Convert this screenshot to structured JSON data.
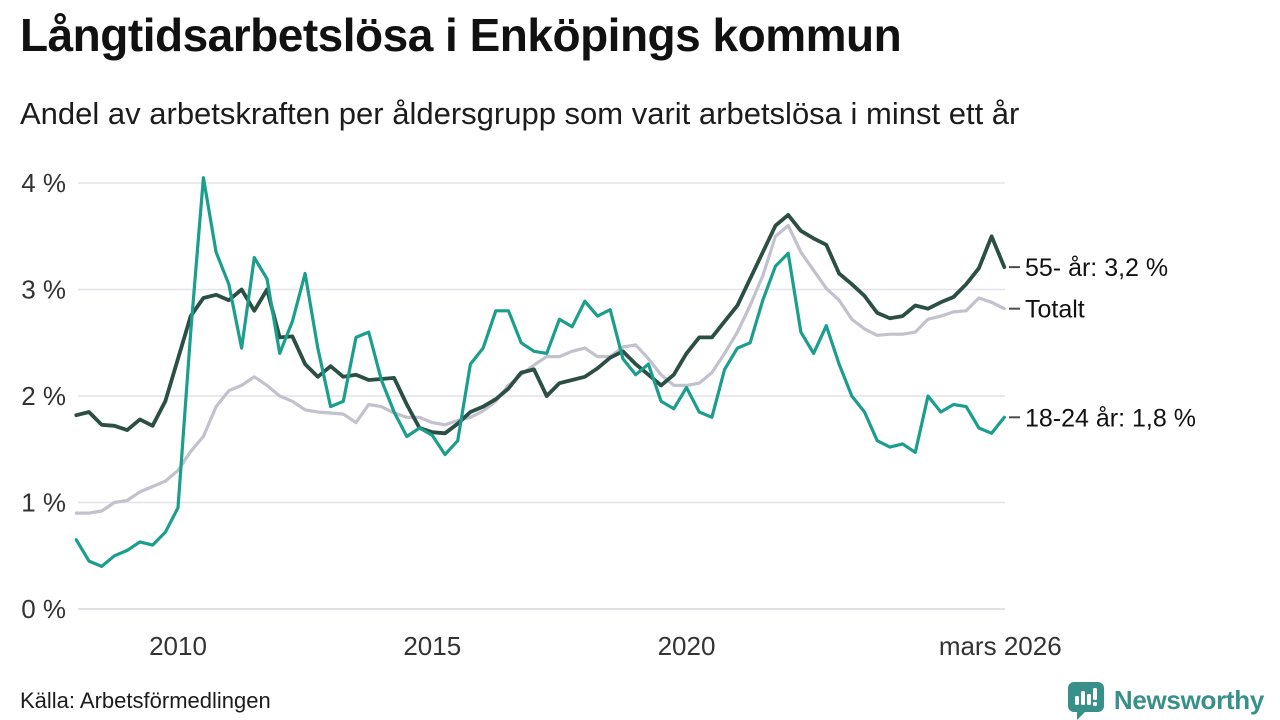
{
  "header": {
    "title": "Långtidsarbetslösa i Enköpings kommun",
    "subtitle": "Andel av arbetskraften per åldersgrupp som varit arbetslösa i minst ett år"
  },
  "footer": {
    "source": "Källa: Arbetsförmedlingen",
    "brand": "Newsworthy",
    "brand_color": "#38908b",
    "logo_icon": "speech-bubble-bar-chart"
  },
  "chart_data": {
    "type": "line",
    "title": "Långtidsarbetslösa i Enköpings kommun",
    "subtitle": "Andel av arbetskraften per åldersgrupp som varit arbetslösa i minst ett år",
    "xlabel": "",
    "ylabel": "",
    "grid": true,
    "legend_position": "right-inline-annotations",
    "x_start": 2008.0,
    "x_step": 0.25,
    "x_range": [
      2008.0,
      2026.25
    ],
    "ylim": [
      0,
      4.3
    ],
    "y_ticks": [
      {
        "value": 4,
        "label": "4 %"
      },
      {
        "value": 3,
        "label": "3 %"
      },
      {
        "value": 2,
        "label": "2 %"
      },
      {
        "value": 1,
        "label": "1 %"
      },
      {
        "value": 0,
        "label": "0 %"
      }
    ],
    "x_ticks": [
      {
        "t": 2010.0,
        "label": "2010"
      },
      {
        "t": 2015.0,
        "label": "2015"
      },
      {
        "t": 2020.0,
        "label": "2020"
      },
      {
        "t": 2026.17,
        "label": "mars 2026"
      }
    ],
    "gridline_color": "#e4e4e9",
    "zeroline_color": "#d8d8dd",
    "annotation_tick_color": "#4d4d4d",
    "series": [
      {
        "name": "Totalt",
        "color": "#c2c1ce",
        "width": 3.2,
        "end_label": "Totalt",
        "end_value": 2.82,
        "values": [
          0.9,
          0.9,
          0.92,
          1.0,
          1.02,
          1.1,
          1.15,
          1.2,
          1.3,
          1.48,
          1.62,
          1.9,
          2.05,
          2.1,
          2.18,
          2.1,
          2.0,
          1.95,
          1.87,
          1.85,
          1.84,
          1.83,
          1.75,
          1.92,
          1.9,
          1.84,
          1.8,
          1.8,
          1.75,
          1.73,
          1.77,
          1.8,
          1.86,
          1.95,
          2.1,
          2.2,
          2.29,
          2.37,
          2.37,
          2.42,
          2.45,
          2.37,
          2.37,
          2.46,
          2.48,
          2.35,
          2.2,
          2.1,
          2.1,
          2.12,
          2.22,
          2.4,
          2.6,
          2.85,
          3.13,
          3.5,
          3.6,
          3.35,
          3.18,
          3.01,
          2.9,
          2.72,
          2.63,
          2.57,
          2.58,
          2.58,
          2.6,
          2.72,
          2.75,
          2.79,
          2.8,
          2.92,
          2.88,
          2.82
        ]
      },
      {
        "name": "55- år",
        "color": "#2b4f44",
        "width": 3.8,
        "end_label": "55- år: 3,2 %",
        "end_value": 3.21,
        "values": [
          1.82,
          1.85,
          1.73,
          1.72,
          1.68,
          1.78,
          1.72,
          1.95,
          2.35,
          2.75,
          2.92,
          2.95,
          2.9,
          3.0,
          2.8,
          3.0,
          2.55,
          2.56,
          2.3,
          2.18,
          2.28,
          2.18,
          2.2,
          2.15,
          2.16,
          2.17,
          1.92,
          1.7,
          1.66,
          1.65,
          1.74,
          1.85,
          1.9,
          1.97,
          2.07,
          2.22,
          2.25,
          2.0,
          2.12,
          2.15,
          2.18,
          2.26,
          2.36,
          2.42,
          2.3,
          2.2,
          2.1,
          2.2,
          2.4,
          2.55,
          2.55,
          2.7,
          2.85,
          3.1,
          3.35,
          3.6,
          3.7,
          3.55,
          3.48,
          3.42,
          3.15,
          3.05,
          2.94,
          2.78,
          2.73,
          2.75,
          2.85,
          2.82,
          2.88,
          2.93,
          3.05,
          3.2,
          3.5,
          3.21
        ]
      },
      {
        "name": "18-24 år",
        "color": "#1b9e8c",
        "width": 3.2,
        "end_label": "18-24 år: 1,8 %",
        "end_value": 1.8,
        "values": [
          0.65,
          0.45,
          0.4,
          0.5,
          0.55,
          0.63,
          0.6,
          0.72,
          0.95,
          2.6,
          4.05,
          3.35,
          3.05,
          2.45,
          3.3,
          3.1,
          2.4,
          2.7,
          3.15,
          2.45,
          1.9,
          1.95,
          2.55,
          2.6,
          2.15,
          1.85,
          1.62,
          1.7,
          1.63,
          1.45,
          1.58,
          2.3,
          2.45,
          2.8,
          2.8,
          2.5,
          2.42,
          2.4,
          2.72,
          2.65,
          2.89,
          2.75,
          2.81,
          2.35,
          2.2,
          2.3,
          1.95,
          1.88,
          2.08,
          1.85,
          1.8,
          2.25,
          2.45,
          2.5,
          2.9,
          3.22,
          3.34,
          2.6,
          2.4,
          2.66,
          2.3,
          2.0,
          1.85,
          1.58,
          1.52,
          1.55,
          1.47,
          2.0,
          1.85,
          1.92,
          1.9,
          1.7,
          1.65,
          1.8
        ]
      }
    ]
  }
}
